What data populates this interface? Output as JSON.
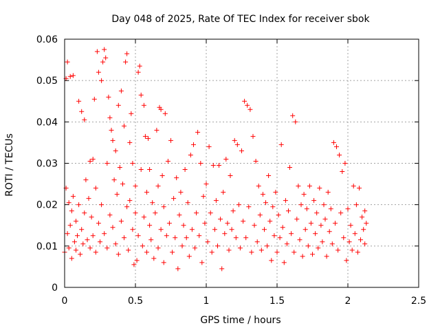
{
  "chart_data": {
    "type": "scatter",
    "title": "Day 048 of 2025, Rate Of TEC Index for receiver sbok",
    "xlabel": "GPS time / hours",
    "ylabel": "ROTI / TECUs",
    "xlim": [
      0,
      2.5
    ],
    "ylim": [
      0,
      0.06
    ],
    "x_ticks": [
      "0",
      "0.5",
      "1",
      "1.5",
      "2",
      "2.5"
    ],
    "y_ticks": [
      "0",
      "0.01",
      "0.02",
      "0.03",
      "0.04",
      "0.05",
      "0.06"
    ],
    "grid": true,
    "marker": "+",
    "color": "#ff0000",
    "series": [
      {
        "points": [
          [
            0.0,
            0.0085
          ],
          [
            0.01,
            0.024
          ],
          [
            0.01,
            0.0505
          ],
          [
            0.02,
            0.0545
          ],
          [
            0.02,
            0.013
          ],
          [
            0.03,
            0.0205
          ],
          [
            0.03,
            0.0095
          ],
          [
            0.04,
            0.051
          ],
          [
            0.04,
            0.015
          ],
          [
            0.05,
            0.0185
          ],
          [
            0.05,
            0.007
          ],
          [
            0.06,
            0.0512
          ],
          [
            0.06,
            0.022
          ],
          [
            0.07,
            0.011
          ],
          [
            0.08,
            0.016
          ],
          [
            0.08,
            0.009
          ],
          [
            0.09,
            0.0125
          ],
          [
            0.1,
            0.045
          ],
          [
            0.1,
            0.02
          ],
          [
            0.11,
            0.008
          ],
          [
            0.12,
            0.0425
          ],
          [
            0.12,
            0.014
          ],
          [
            0.13,
            0.0105
          ],
          [
            0.14,
            0.0405
          ],
          [
            0.14,
            0.018
          ],
          [
            0.15,
            0.026
          ],
          [
            0.16,
            0.0115
          ],
          [
            0.17,
            0.0215
          ],
          [
            0.18,
            0.0305
          ],
          [
            0.18,
            0.0095
          ],
          [
            0.19,
            0.017
          ],
          [
            0.2,
            0.031
          ],
          [
            0.2,
            0.0125
          ],
          [
            0.21,
            0.0455
          ],
          [
            0.22,
            0.024
          ],
          [
            0.22,
            0.0085
          ],
          [
            0.23,
            0.057
          ],
          [
            0.24,
            0.0155
          ],
          [
            0.24,
            0.052
          ],
          [
            0.25,
            0.011
          ],
          [
            0.26,
            0.05
          ],
          [
            0.26,
            0.02
          ],
          [
            0.27,
            0.0545
          ],
          [
            0.28,
            0.0575
          ],
          [
            0.28,
            0.013
          ],
          [
            0.29,
            0.0555
          ],
          [
            0.3,
            0.03
          ],
          [
            0.3,
            0.0095
          ],
          [
            0.31,
            0.046
          ],
          [
            0.32,
            0.0175
          ],
          [
            0.32,
            0.041
          ],
          [
            0.33,
            0.038
          ],
          [
            0.34,
            0.0145
          ],
          [
            0.34,
            0.0355
          ],
          [
            0.35,
            0.026
          ],
          [
            0.36,
            0.0105
          ],
          [
            0.36,
            0.033
          ],
          [
            0.37,
            0.0225
          ],
          [
            0.38,
            0.044
          ],
          [
            0.38,
            0.008
          ],
          [
            0.39,
            0.029
          ],
          [
            0.4,
            0.016
          ],
          [
            0.4,
            0.0475
          ],
          [
            0.41,
            0.025
          ],
          [
            0.42,
            0.012
          ],
          [
            0.42,
            0.039
          ],
          [
            0.43,
            0.0545
          ],
          [
            0.44,
            0.0195
          ],
          [
            0.44,
            0.0565
          ],
          [
            0.45,
            0.009
          ],
          [
            0.46,
            0.035
          ],
          [
            0.46,
            0.021
          ],
          [
            0.47,
            0.042
          ],
          [
            0.48,
            0.014
          ],
          [
            0.48,
            0.03
          ],
          [
            0.49,
            0.0055
          ],
          [
            0.5,
            0.018
          ],
          [
            0.5,
            0.0245
          ],
          [
            0.51,
            0.0065
          ],
          [
            0.52,
            0.052
          ],
          [
            0.52,
            0.0125
          ],
          [
            0.53,
            0.0535
          ],
          [
            0.54,
            0.0465
          ],
          [
            0.54,
            0.0285
          ],
          [
            0.55,
            0.01
          ],
          [
            0.56,
            0.044
          ],
          [
            0.56,
            0.017
          ],
          [
            0.57,
            0.0365
          ],
          [
            0.58,
            0.023
          ],
          [
            0.58,
            0.0085
          ],
          [
            0.59,
            0.036
          ],
          [
            0.6,
            0.015
          ],
          [
            0.6,
            0.0285
          ],
          [
            0.61,
            0.0115
          ],
          [
            0.62,
            0.0205
          ],
          [
            0.63,
            0.007
          ],
          [
            0.64,
            0.018
          ],
          [
            0.65,
            0.038
          ],
          [
            0.66,
            0.0245
          ],
          [
            0.66,
            0.0095
          ],
          [
            0.67,
            0.0435
          ],
          [
            0.68,
            0.014
          ],
          [
            0.68,
            0.043
          ],
          [
            0.69,
            0.027
          ],
          [
            0.7,
            0.006
          ],
          [
            0.7,
            0.0195
          ],
          [
            0.71,
            0.042
          ],
          [
            0.72,
            0.0125
          ],
          [
            0.73,
            0.0305
          ],
          [
            0.74,
            0.0155
          ],
          [
            0.75,
            0.0355
          ],
          [
            0.76,
            0.0085
          ],
          [
            0.77,
            0.0215
          ],
          [
            0.78,
            0.012
          ],
          [
            0.79,
            0.0265
          ],
          [
            0.8,
            0.0045
          ],
          [
            0.81,
            0.0175
          ],
          [
            0.82,
            0.023
          ],
          [
            0.83,
            0.01
          ],
          [
            0.84,
            0.015
          ],
          [
            0.85,
            0.0285
          ],
          [
            0.86,
            0.012
          ],
          [
            0.87,
            0.0205
          ],
          [
            0.88,
            0.0075
          ],
          [
            0.89,
            0.032
          ],
          [
            0.9,
            0.014
          ],
          [
            0.91,
            0.0345
          ],
          [
            0.92,
            0.0095
          ],
          [
            0.93,
            0.018
          ],
          [
            0.94,
            0.0375
          ],
          [
            0.95,
            0.0125
          ],
          [
            0.96,
            0.03
          ],
          [
            0.97,
            0.006
          ],
          [
            0.98,
            0.022
          ],
          [
            0.99,
            0.0155
          ],
          [
            1.0,
            0.025
          ],
          [
            1.01,
            0.011
          ],
          [
            1.02,
            0.034
          ],
          [
            1.03,
            0.018
          ],
          [
            1.04,
            0.0085
          ],
          [
            1.05,
            0.0295
          ],
          [
            1.06,
            0.014
          ],
          [
            1.07,
            0.021
          ],
          [
            1.08,
            0.01
          ],
          [
            1.09,
            0.0295
          ],
          [
            1.1,
            0.0165
          ],
          [
            1.11,
            0.0045
          ],
          [
            1.12,
            0.023
          ],
          [
            1.13,
            0.013
          ],
          [
            1.14,
            0.031
          ],
          [
            1.15,
            0.0155
          ],
          [
            1.16,
            0.009
          ],
          [
            1.17,
            0.027
          ],
          [
            1.18,
            0.014
          ],
          [
            1.19,
            0.0185
          ],
          [
            1.2,
            0.0355
          ],
          [
            1.21,
            0.012
          ],
          [
            1.22,
            0.0345
          ],
          [
            1.23,
            0.02
          ],
          [
            1.24,
            0.0095
          ],
          [
            1.25,
            0.033
          ],
          [
            1.26,
            0.016
          ],
          [
            1.27,
            0.045
          ],
          [
            1.28,
            0.012
          ],
          [
            1.29,
            0.044
          ],
          [
            1.3,
            0.0195
          ],
          [
            1.31,
            0.043
          ],
          [
            1.32,
            0.0085
          ],
          [
            1.33,
            0.0365
          ],
          [
            1.34,
            0.015
          ],
          [
            1.35,
            0.0305
          ],
          [
            1.36,
            0.011
          ],
          [
            1.37,
            0.0245
          ],
          [
            1.38,
            0.0175
          ],
          [
            1.39,
            0.009
          ],
          [
            1.4,
            0.0225
          ],
          [
            1.41,
            0.014
          ],
          [
            1.42,
            0.0205
          ],
          [
            1.43,
            0.01
          ],
          [
            1.44,
            0.027
          ],
          [
            1.45,
            0.016
          ],
          [
            1.46,
            0.0065
          ],
          [
            1.47,
            0.0195
          ],
          [
            1.48,
            0.0125
          ],
          [
            1.49,
            0.023
          ],
          [
            1.5,
            0.0085
          ],
          [
            1.51,
            0.0175
          ],
          [
            1.52,
            0.012
          ],
          [
            1.53,
            0.0345
          ],
          [
            1.54,
            0.0145
          ],
          [
            1.55,
            0.006
          ],
          [
            1.56,
            0.021
          ],
          [
            1.57,
            0.0105
          ],
          [
            1.58,
            0.0185
          ],
          [
            1.59,
            0.029
          ],
          [
            1.6,
            0.013
          ],
          [
            1.61,
            0.0415
          ],
          [
            1.62,
            0.0085
          ],
          [
            1.63,
            0.04
          ],
          [
            1.64,
            0.0165
          ],
          [
            1.65,
            0.0245
          ],
          [
            1.66,
            0.0115
          ],
          [
            1.67,
            0.02
          ],
          [
            1.68,
            0.0075
          ],
          [
            1.69,
            0.0225
          ],
          [
            1.7,
            0.014
          ],
          [
            1.71,
            0.019
          ],
          [
            1.72,
            0.01
          ],
          [
            1.73,
            0.0245
          ],
          [
            1.74,
            0.0155
          ],
          [
            1.75,
            0.008
          ],
          [
            1.76,
            0.021
          ],
          [
            1.77,
            0.013
          ],
          [
            1.78,
            0.018
          ],
          [
            1.79,
            0.0095
          ],
          [
            1.8,
            0.024
          ],
          [
            1.81,
            0.015
          ],
          [
            1.82,
            0.011
          ],
          [
            1.83,
            0.02
          ],
          [
            1.84,
            0.0165
          ],
          [
            1.85,
            0.0075
          ],
          [
            1.86,
            0.023
          ],
          [
            1.87,
            0.0135
          ],
          [
            1.88,
            0.019
          ],
          [
            1.89,
            0.0105
          ],
          [
            1.9,
            0.035
          ],
          [
            1.91,
            0.0155
          ],
          [
            1.92,
            0.034
          ],
          [
            1.93,
            0.009
          ],
          [
            1.94,
            0.032
          ],
          [
            1.95,
            0.018
          ],
          [
            1.96,
            0.028
          ],
          [
            1.97,
            0.012
          ],
          [
            1.98,
            0.03
          ],
          [
            1.99,
            0.0065
          ],
          [
            2.0,
            0.019
          ],
          [
            2.01,
            0.011
          ],
          [
            2.02,
            0.015
          ],
          [
            2.03,
            0.009
          ],
          [
            2.04,
            0.0245
          ],
          [
            2.05,
            0.013
          ],
          [
            2.06,
            0.02
          ],
          [
            2.07,
            0.0085
          ],
          [
            2.08,
            0.024
          ],
          [
            2.09,
            0.0115
          ],
          [
            2.1,
            0.017
          ],
          [
            2.11,
            0.014
          ],
          [
            2.12,
            0.0185
          ],
          [
            2.12,
            0.0105
          ],
          [
            2.13,
            0.0155
          ]
        ]
      }
    ]
  }
}
